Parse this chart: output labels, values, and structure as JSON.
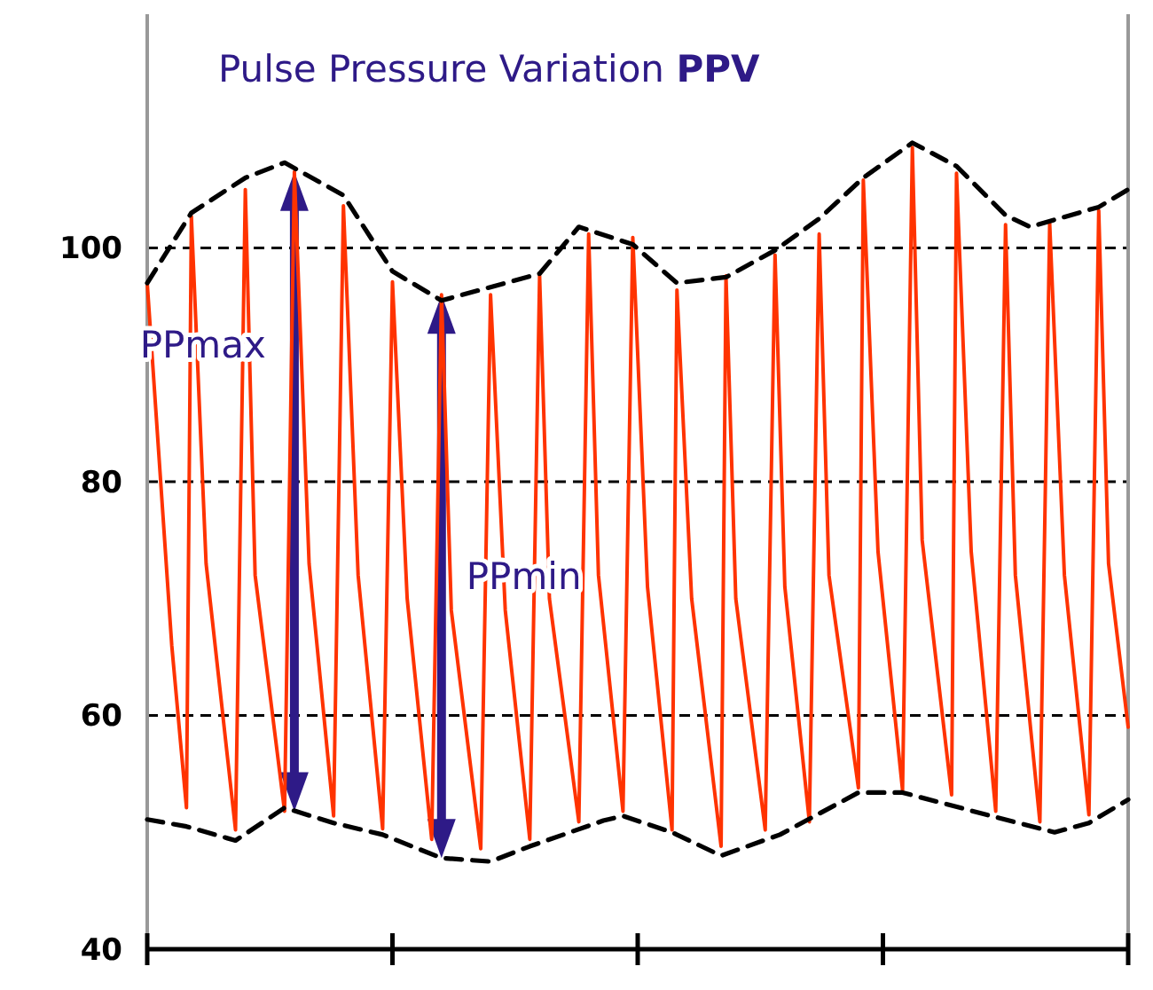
{
  "chart_data": {
    "type": "line",
    "title": "Pulse Pressure Variation PPV",
    "ylim": [
      40,
      120
    ],
    "yticks": [
      40,
      60,
      80,
      100
    ],
    "categories": [
      null,
      null,
      null,
      null,
      null,
      null,
      null,
      null,
      null,
      null,
      null,
      null,
      null,
      null,
      null,
      null,
      null,
      null,
      null,
      null,
      null,
      null,
      null,
      null,
      null,
      null,
      null,
      null,
      null,
      null,
      null,
      null,
      null,
      null,
      null,
      null,
      null,
      null,
      null,
      null,
      null,
      null,
      null,
      null,
      null,
      null,
      null,
      null,
      null,
      null,
      null,
      null,
      null,
      null,
      null,
      null,
      null,
      null,
      null,
      null,
      null,
      null,
      null,
      null,
      null,
      null,
      null,
      null,
      null,
      null,
      null,
      null,
      null,
      null,
      null,
      null,
      null,
      null,
      null,
      null,
      null,
      null,
      null,
      null,
      null,
      null,
      null,
      null,
      null,
      null,
      null,
      null,
      null,
      null,
      null,
      null,
      null,
      null,
      null,
      null,
      null,
      null,
      null,
      null,
      null,
      null,
      null,
      null,
      null,
      null,
      null,
      null,
      null,
      null,
      null,
      null,
      null,
      null,
      null,
      null,
      null,
      null,
      null,
      null,
      null,
      null,
      null,
      null,
      null,
      null,
      null,
      null,
      null,
      null,
      null,
      null,
      null,
      null,
      null,
      null,
      null,
      null,
      null,
      null,
      null,
      null,
      null,
      null,
      null,
      null,
      null,
      null,
      null,
      null,
      null,
      null,
      null,
      null,
      null,
      null,
      null,
      null,
      null,
      null,
      null,
      null,
      null,
      null,
      null,
      null,
      null,
      null,
      null,
      null,
      null,
      null,
      null,
      null,
      null,
      null,
      null,
      null,
      null,
      null,
      null,
      null,
      null,
      null,
      null,
      null,
      null,
      null,
      null,
      null,
      null,
      null,
      null,
      null,
      null,
      null,
      null
    ],
    "grid": "y",
    "series": [
      {
        "color": "#ff3300",
        "line_style": "solid",
        "values": [
          97,
          null,
          null,
          null,
          null,
          66,
          null,
          null,
          52.1,
          102.7,
          null,
          null,
          73,
          null,
          null,
          null,
          null,
          null,
          50.2,
          null,
          105,
          null,
          72,
          null,
          null,
          null,
          null,
          null,
          51.8,
          null,
          106.5,
          null,
          null,
          73,
          null,
          null,
          null,
          null,
          51.4,
          null,
          103.6,
          null,
          null,
          72,
          null,
          null,
          null,
          null,
          50.3,
          null,
          97.1,
          null,
          null,
          70,
          null,
          null,
          null,
          null,
          49.4,
          null,
          96,
          null,
          69,
          null,
          null,
          null,
          null,
          null,
          48.6,
          null,
          96,
          null,
          null,
          69,
          null,
          null,
          null,
          null,
          49.4,
          null,
          97.6,
          null,
          70,
          null,
          null,
          null,
          null,
          null,
          50.9,
          null,
          101.2,
          null,
          72,
          null,
          null,
          null,
          null,
          51.8,
          null,
          100.9,
          null,
          null,
          71,
          null,
          null,
          null,
          null,
          50.2,
          96.4,
          null,
          null,
          70,
          null,
          null,
          null,
          null,
          null,
          48.8,
          97.6,
          null,
          70,
          null,
          null,
          null,
          null,
          null,
          50.2,
          null,
          99.4,
          null,
          71,
          null,
          null,
          null,
          null,
          50.9,
          null,
          101.2,
          null,
          72,
          null,
          null,
          null,
          null,
          null,
          53.8,
          105.8,
          null,
          null,
          74,
          null,
          null,
          null,
          null,
          53.6,
          null,
          108.6,
          null,
          75,
          null,
          null,
          null,
          null,
          null,
          53.2,
          106.4,
          null,
          null,
          74,
          null,
          null,
          null,
          null,
          51.8,
          null,
          102,
          null,
          72,
          null,
          null,
          null,
          null,
          50.9,
          null,
          102.1,
          null,
          null,
          72,
          null,
          null,
          null,
          null,
          51.5,
          null,
          103.2,
          null,
          73,
          null,
          null,
          null,
          59
        ]
      },
      {
        "color": "#000000",
        "line_style": "dashed",
        "values": [
          97,
          null,
          null,
          null,
          null,
          null,
          101,
          null,
          null,
          103,
          null,
          null,
          null,
          null,
          null,
          null,
          null,
          null,
          null,
          null,
          106,
          null,
          null,
          null,
          null,
          null,
          null,
          null,
          107.3,
          null,
          null,
          null,
          null,
          null,
          null,
          null,
          null,
          null,
          null,
          null,
          104.5,
          null,
          null,
          null,
          null,
          null,
          null,
          null,
          null,
          null,
          98,
          null,
          null,
          null,
          null,
          null,
          null,
          null,
          null,
          null,
          95.5,
          null,
          null,
          null,
          null,
          null,
          null,
          null,
          null,
          null,
          null,
          null,
          null,
          null,
          null,
          null,
          null,
          null,
          null,
          null,
          97.8,
          null,
          null,
          null,
          null,
          null,
          null,
          null,
          101.8,
          null,
          null,
          null,
          null,
          null,
          null,
          null,
          null,
          null,
          null,
          100.3,
          null,
          null,
          null,
          null,
          null,
          null,
          null,
          null,
          97,
          null,
          null,
          null,
          null,
          null,
          null,
          null,
          null,
          null,
          97.5,
          null,
          null,
          null,
          null,
          null,
          null,
          null,
          null,
          null,
          99.8,
          null,
          null,
          null,
          null,
          null,
          null,
          null,
          null,
          102.5,
          null,
          null,
          null,
          null,
          null,
          null,
          null,
          null,
          106,
          null,
          null,
          null,
          null,
          null,
          null,
          null,
          null,
          null,
          109,
          null,
          null,
          null,
          null,
          null,
          null,
          null,
          null,
          107,
          null,
          null,
          null,
          null,
          null,
          null,
          null,
          null,
          null,
          102.8,
          null,
          null,
          null,
          null,
          101.8,
          null,
          null,
          null,
          null,
          null,
          null,
          null,
          null,
          null,
          null,
          null,
          null,
          null,
          103.5,
          null,
          null,
          null,
          null,
          null,
          105
        ]
      },
      {
        "color": "#000000",
        "line_style": "dashed",
        "values": [
          51.1,
          null,
          null,
          null,
          null,
          null,
          null,
          null,
          50.5,
          null,
          null,
          null,
          null,
          null,
          null,
          null,
          null,
          null,
          49.3,
          null,
          null,
          null,
          null,
          null,
          null,
          null,
          null,
          null,
          52.1,
          null,
          null,
          null,
          null,
          null,
          null,
          null,
          null,
          null,
          50.8,
          null,
          null,
          null,
          null,
          null,
          null,
          null,
          null,
          null,
          49.8,
          null,
          null,
          null,
          null,
          null,
          null,
          null,
          null,
          null,
          null,
          null,
          47.8,
          null,
          null,
          null,
          null,
          null,
          null,
          null,
          null,
          null,
          47.5,
          null,
          null,
          null,
          null,
          null,
          null,
          null,
          48.8,
          null,
          null,
          null,
          null,
          null,
          null,
          null,
          null,
          null,
          null,
          null,
          null,
          null,
          null,
          51,
          null,
          null,
          null,
          51.4,
          null,
          null,
          null,
          null,
          null,
          null,
          null,
          null,
          null,
          50,
          null,
          null,
          null,
          null,
          null,
          null,
          null,
          null,
          null,
          48,
          null,
          null,
          null,
          null,
          null,
          null,
          null,
          null,
          null,
          null,
          null,
          49.8,
          null,
          null,
          null,
          null,
          null,
          null,
          null,
          null,
          null,
          null,
          null,
          null,
          null,
          null,
          null,
          53.4,
          null,
          null,
          null,
          null,
          null,
          null,
          null,
          null,
          53.4,
          null,
          null,
          null,
          null,
          null,
          null,
          null,
          null,
          null,
          null,
          null,
          null,
          null,
          null,
          null,
          null,
          null,
          null,
          51.3,
          null,
          null,
          null,
          null,
          null,
          null,
          null,
          null,
          null,
          null,
          null,
          50,
          null,
          null,
          null,
          null,
          null,
          null,
          50.8,
          null,
          null,
          null,
          null,
          null,
          null,
          null,
          52.8
        ]
      }
    ],
    "annotations": [
      "PPmax",
      "PPmin"
    ]
  }
}
